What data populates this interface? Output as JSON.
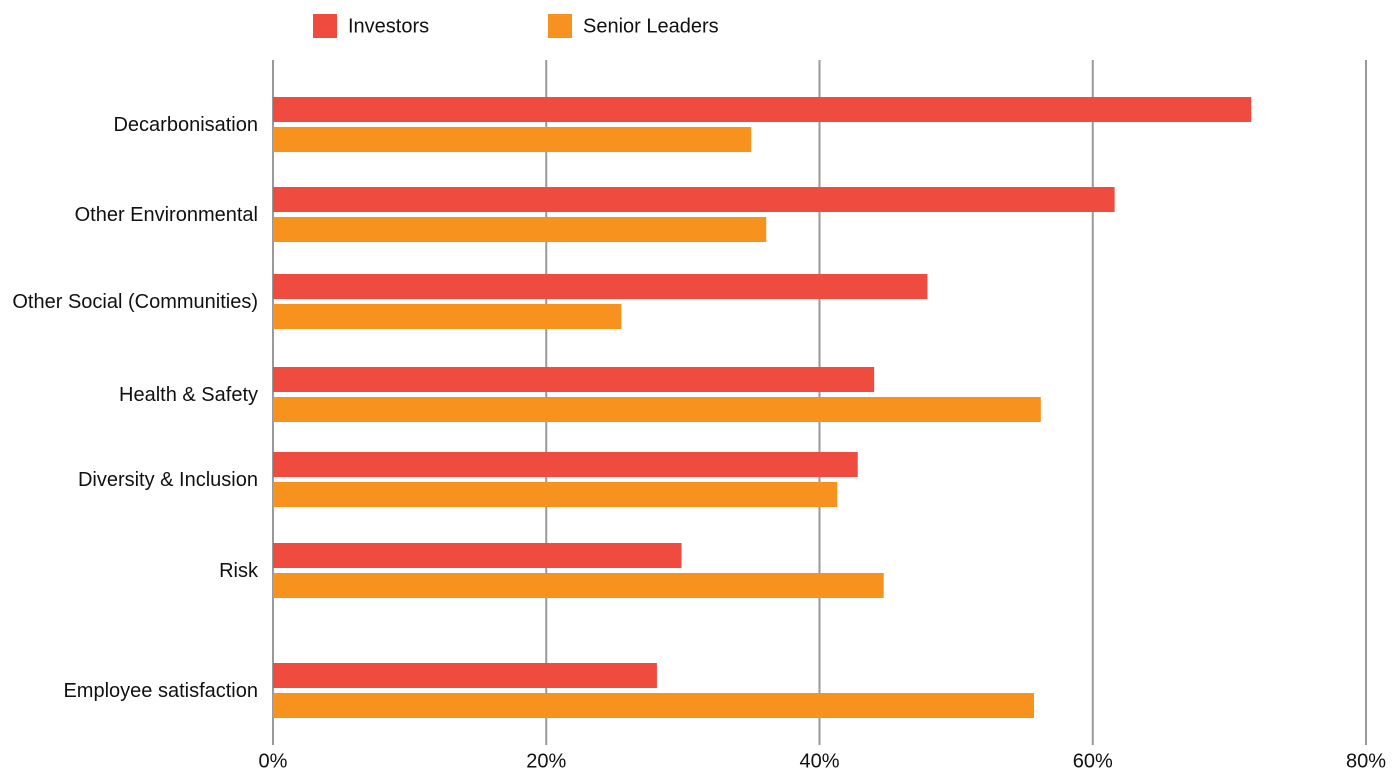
{
  "chart_data": {
    "type": "bar",
    "orientation": "horizontal",
    "categories": [
      "Decarbonisation",
      "Other Environmental",
      "Other Social (Communities)",
      "Health & Safety",
      "Diversity & Inclusion",
      "Risk",
      "Employee satisfaction"
    ],
    "series": [
      {
        "name": "Investors",
        "color": "#ef4b3f",
        "values": [
          71.6,
          61.6,
          47.9,
          44.0,
          42.8,
          29.9,
          28.1
        ]
      },
      {
        "name": "Senior Leaders",
        "color": "#f7921e",
        "values": [
          35.0,
          36.1,
          25.5,
          56.2,
          41.3,
          44.7,
          55.7
        ]
      }
    ],
    "xlim": [
      0,
      80
    ],
    "xticks": [
      {
        "value": 0,
        "label": "0%"
      },
      {
        "value": 20,
        "label": "20%"
      },
      {
        "value": 40,
        "label": "40%"
      },
      {
        "value": 60,
        "label": "60%"
      },
      {
        "value": 80,
        "label": "80%"
      }
    ],
    "grid": true,
    "legend": "top"
  }
}
